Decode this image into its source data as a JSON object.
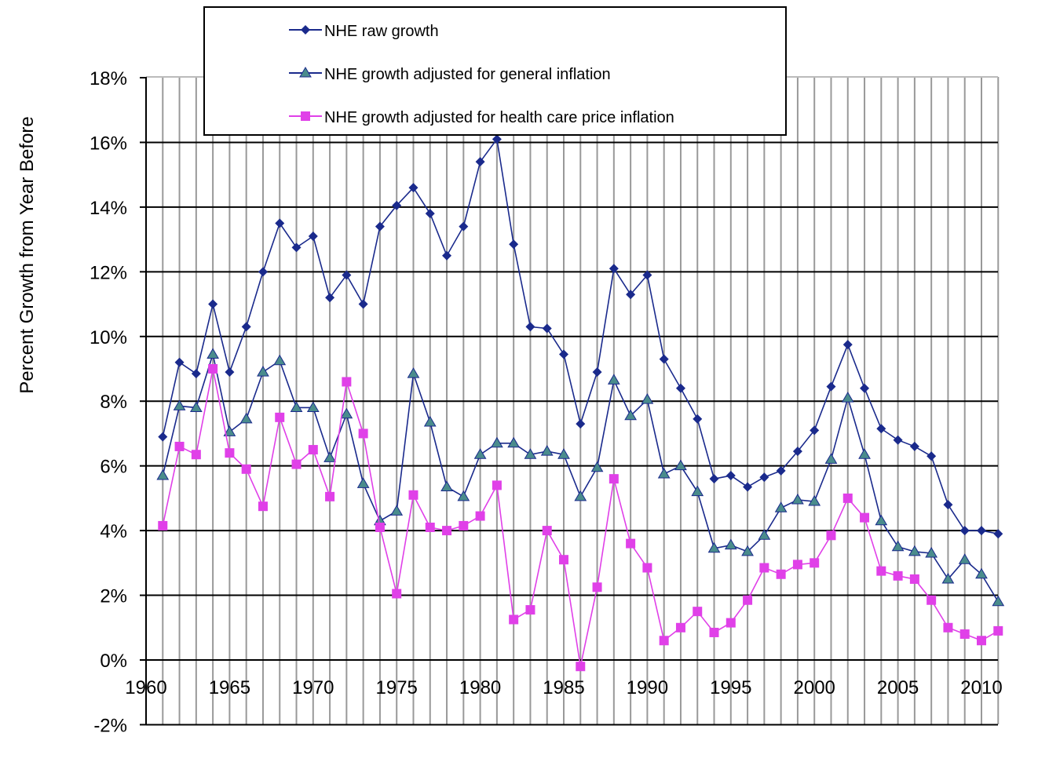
{
  "chart_data": {
    "type": "line",
    "title": "",
    "xlabel": "",
    "ylabel": "Percent Growth from Year Before",
    "xlim": [
      1960,
      2011
    ],
    "ylim": [
      -2,
      18
    ],
    "x_ticks": [
      "1960",
      "1965",
      "1970",
      "1975",
      "1980",
      "1985",
      "1990",
      "1995",
      "2000",
      "2005",
      "2010"
    ],
    "y_ticks": [
      "18%",
      "16%",
      "14%",
      "12%",
      "10%",
      "8%",
      "6%",
      "4%",
      "2%",
      "0%",
      "-2%"
    ],
    "grid": {
      "horizontal": true,
      "vertical": true
    },
    "legend_placement": "top",
    "x": [
      1961,
      1962,
      1963,
      1964,
      1965,
      1966,
      1967,
      1968,
      1969,
      1970,
      1971,
      1972,
      1973,
      1974,
      1975,
      1976,
      1977,
      1978,
      1979,
      1980,
      1981,
      1982,
      1983,
      1984,
      1985,
      1986,
      1987,
      1988,
      1989,
      1990,
      1991,
      1992,
      1993,
      1994,
      1995,
      1996,
      1997,
      1998,
      1999,
      2000,
      2001,
      2002,
      2003,
      2004,
      2005,
      2006,
      2007,
      2008,
      2009,
      2010,
      2011
    ],
    "series": [
      {
        "name": "NHE raw growth",
        "color": "#1a2a8c",
        "marker": "diamond",
        "values": [
          6.9,
          9.2,
          8.85,
          11.0,
          8.9,
          10.3,
          12.0,
          13.5,
          12.75,
          13.1,
          11.2,
          11.9,
          11.0,
          13.4,
          14.05,
          14.6,
          13.8,
          12.5,
          13.4,
          15.4,
          16.1,
          12.85,
          10.3,
          10.25,
          9.45,
          7.3,
          8.9,
          12.1,
          11.3,
          11.9,
          9.3,
          8.4,
          7.45,
          5.6,
          5.7,
          5.35,
          5.65,
          5.85,
          6.45,
          7.1,
          8.45,
          9.75,
          8.4,
          7.15,
          6.8,
          6.6,
          6.3,
          4.8,
          4.0,
          4.0,
          3.9
        ]
      },
      {
        "name": "NHE growth adjusted for general inflation",
        "color": "#1a2a8c",
        "marker_color": "#4a8c8c",
        "marker": "triangle",
        "values": [
          5.7,
          7.85,
          7.8,
          9.45,
          7.05,
          7.45,
          8.9,
          9.25,
          7.8,
          7.8,
          6.25,
          7.6,
          5.45,
          4.3,
          4.6,
          8.85,
          7.35,
          5.35,
          5.05,
          6.35,
          6.7,
          6.7,
          6.35,
          6.45,
          6.35,
          5.05,
          5.95,
          8.65,
          7.55,
          8.05,
          5.75,
          6.0,
          5.2,
          3.45,
          3.55,
          3.35,
          3.85,
          4.7,
          4.95,
          4.9,
          6.2,
          8.1,
          6.35,
          4.3,
          3.5,
          3.35,
          3.3,
          2.5,
          3.1,
          2.65,
          1.8
        ]
      },
      {
        "name": "NHE growth adjusted for health care price inflation",
        "color": "#e040e8",
        "marker": "square",
        "values": [
          4.15,
          6.6,
          6.35,
          9.0,
          6.4,
          5.9,
          4.75,
          7.5,
          6.05,
          6.5,
          5.05,
          8.6,
          7.0,
          4.1,
          2.05,
          5.1,
          4.1,
          4.0,
          4.15,
          4.45,
          5.4,
          1.25,
          1.55,
          4.0,
          3.1,
          -0.2,
          2.25,
          5.6,
          3.6,
          2.85,
          0.6,
          1.0,
          1.5,
          0.85,
          1.15,
          1.85,
          2.85,
          2.65,
          2.95,
          3.0,
          3.85,
          5.0,
          4.4,
          2.75,
          2.6,
          2.5,
          1.85,
          1.0,
          0.8,
          0.6,
          0.9
        ]
      }
    ]
  }
}
